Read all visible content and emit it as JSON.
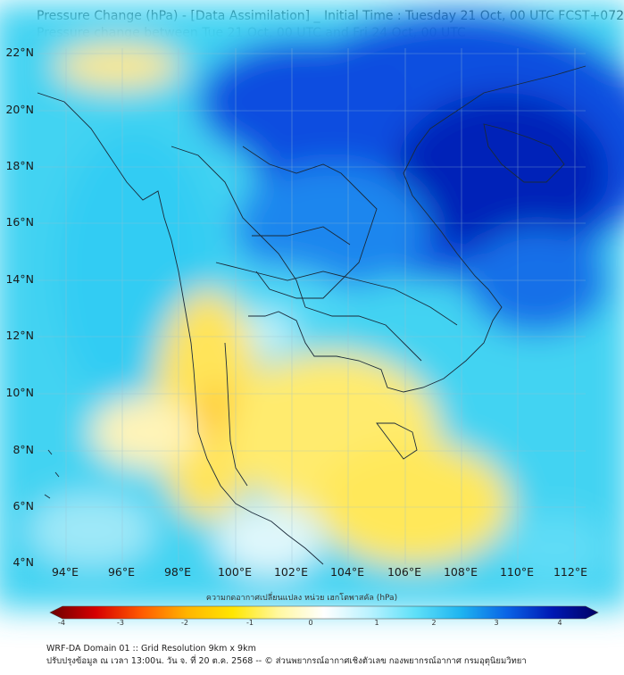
{
  "title": {
    "line1": "Pressure Change (hPa) - [Data Assimilation] _ Initial Time : Tuesday 21 Oct, 00 UTC FCST+072",
    "line2": "Pressure change between Tue 21 Oct, 00 UTC and Fri 24 Oct, 00 UTC"
  },
  "map": {
    "lat_labels": [
      "22°N",
      "20°N",
      "18°N",
      "16°N",
      "14°N",
      "12°N",
      "10°N",
      "8°N",
      "6°N",
      "4°N"
    ],
    "lon_labels": [
      "94°E",
      "96°E",
      "98°E",
      "100°E",
      "102°E",
      "104°E",
      "106°E",
      "108°E",
      "110°E",
      "112°E"
    ],
    "lat_range": [
      4,
      22.2
    ],
    "lon_range": [
      93,
      112.4
    ],
    "gridlines": true
  },
  "colorbar": {
    "title": "ความกดอากาศเปลี่ยนแปลง หน่วย เฮกโตพาสคัล (hPa)",
    "ticks": [
      "-4",
      "-3",
      "-2",
      "-1",
      "0",
      "1",
      "2",
      "3",
      "4"
    ],
    "range": [
      -4,
      4
    ],
    "colors": [
      "#6b0000",
      "#d60000",
      "#ff5a00",
      "#ffb400",
      "#ffe600",
      "#fff8a0",
      "#ffffff",
      "#b9f2ff",
      "#5ee0f8",
      "#1eb4f0",
      "#0a64e6",
      "#0018b4",
      "#000064"
    ]
  },
  "footer": {
    "line1": "WRF-DA Domain 01 :: Grid Resolution 9km x 9km",
    "line2": "ปรับปรุงข้อมูล ณ เวลา 13:00น. วัน จ. ที่ 20 ต.ค. 2568 -- © ส่วนพยากรณ์อากาศเชิงตัวเลข กองพยากรณ์อากาศ กรมอุตุนิยมวิทยา"
  }
}
